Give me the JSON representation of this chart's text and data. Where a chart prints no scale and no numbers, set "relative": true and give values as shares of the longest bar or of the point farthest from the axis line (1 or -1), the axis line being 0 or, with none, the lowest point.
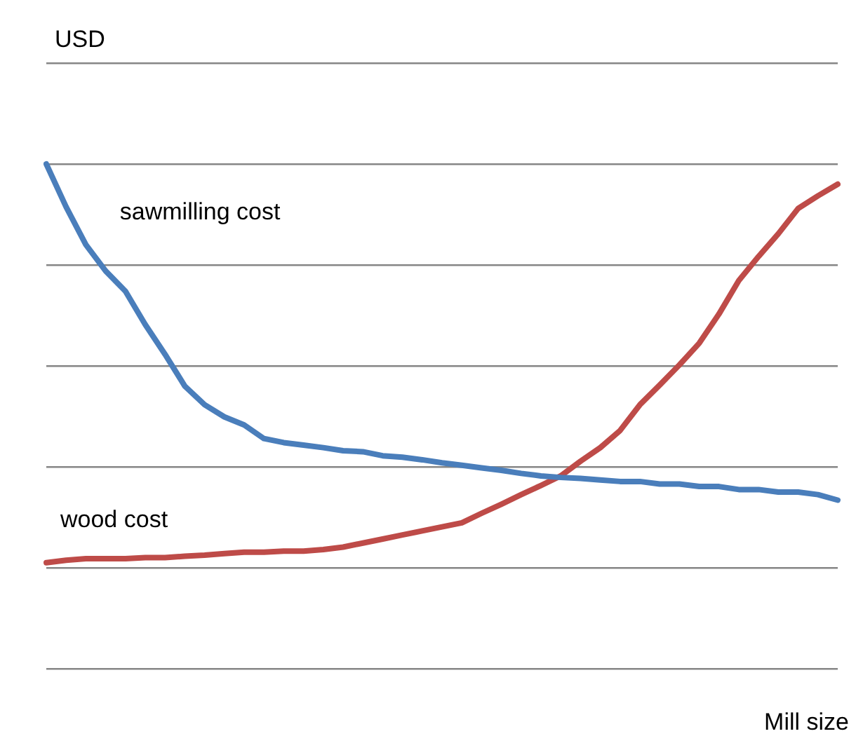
{
  "chart_data": {
    "type": "line",
    "relative": true,
    "ylabel": "USD",
    "xlabel": "Mill size",
    "grid": "y",
    "legend": false,
    "marker": "none",
    "line_style": "solid",
    "categories": [
      null,
      null,
      null,
      null,
      null,
      null,
      null,
      null,
      null,
      null,
      null,
      null,
      null,
      null,
      null,
      null,
      null,
      null,
      null,
      null,
      null,
      null,
      null,
      null,
      null,
      null,
      null,
      null,
      null,
      null,
      null,
      null,
      null,
      null,
      null,
      null,
      null,
      null,
      null,
      null,
      null
    ],
    "series": [
      {
        "name": "sawmilling cost",
        "color": "#4a7ebb",
        "values": [
          1.0,
          0.915,
          0.84,
          0.788,
          0.748,
          0.682,
          0.623,
          0.56,
          0.523,
          0.499,
          0.483,
          0.456,
          0.448,
          0.443,
          0.438,
          0.432,
          0.43,
          0.422,
          0.419,
          0.414,
          0.408,
          0.403,
          0.398,
          0.393,
          0.387,
          0.382,
          0.379,
          0.377,
          0.374,
          0.371,
          0.371,
          0.366,
          0.366,
          0.361,
          0.361,
          0.355,
          0.355,
          0.35,
          0.35,
          0.345,
          0.334
        ]
      },
      {
        "name": "wood cost",
        "color": "#be4b48",
        "values": [
          0.21,
          0.215,
          0.218,
          0.218,
          0.218,
          0.22,
          0.22,
          0.223,
          0.225,
          0.228,
          0.231,
          0.231,
          0.233,
          0.233,
          0.236,
          0.241,
          0.249,
          0.257,
          0.265,
          0.273,
          0.281,
          0.289,
          0.308,
          0.326,
          0.345,
          0.363,
          0.382,
          0.411,
          0.438,
          0.472,
          0.523,
          0.562,
          0.602,
          0.645,
          0.703,
          0.769,
          0.817,
          0.862,
          0.912,
          0.937,
          0.96
        ]
      }
    ]
  }
}
